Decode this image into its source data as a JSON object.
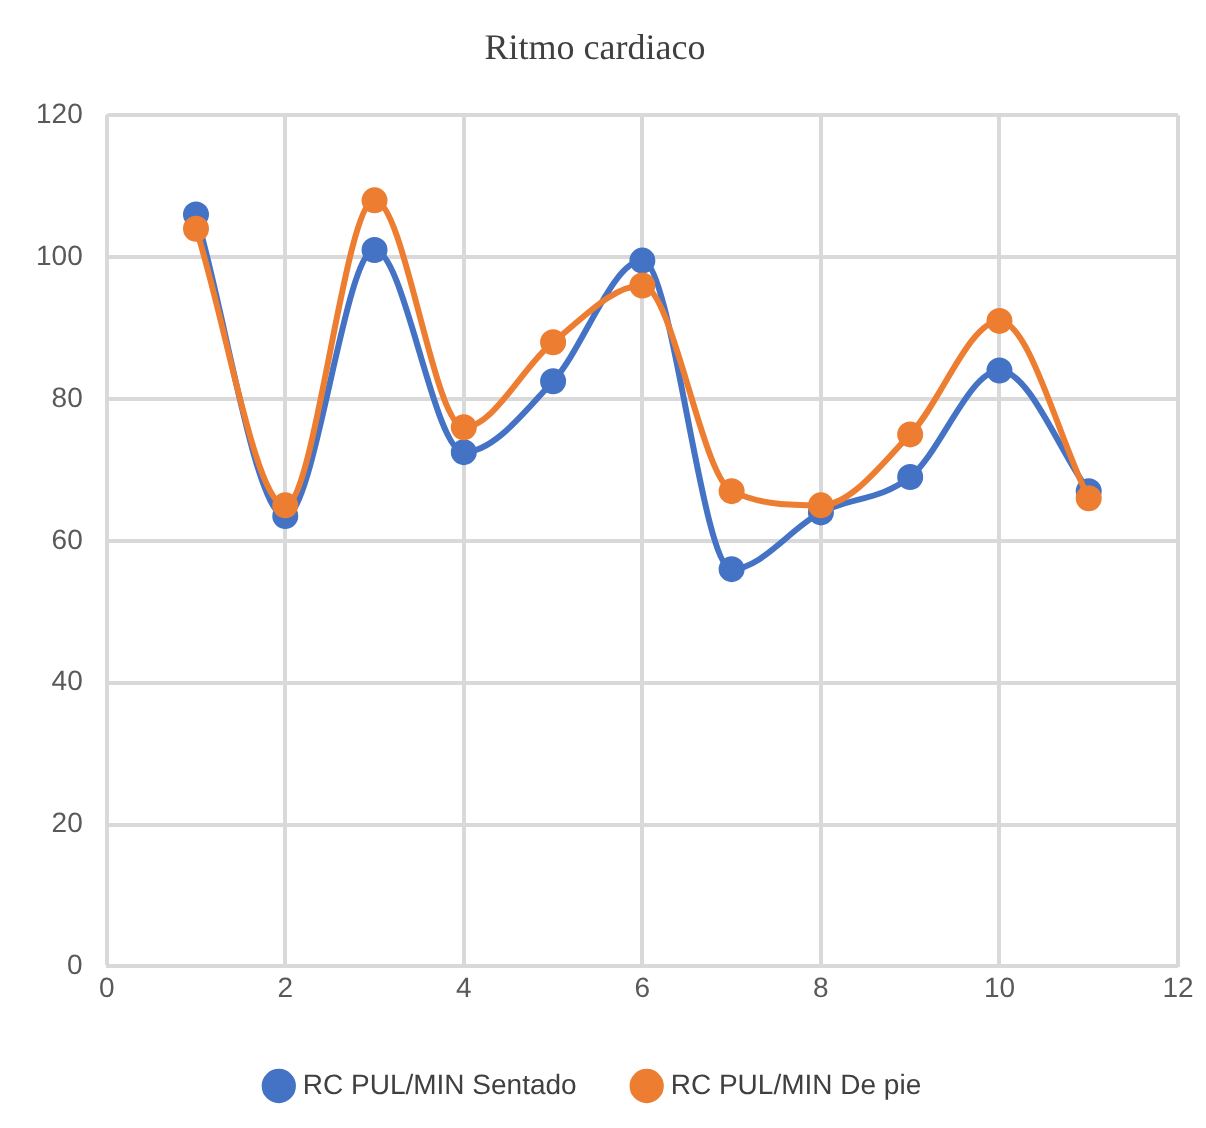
{
  "chart_data": {
    "type": "line",
    "title": "Ritmo cardiaco",
    "x": [
      1,
      2,
      3,
      4,
      5,
      6,
      7,
      8,
      9,
      10,
      11
    ],
    "series": [
      {
        "name": "RC PUL/MIN Sentado",
        "color": "#4472c4",
        "values": [
          106,
          63.5,
          101,
          72.5,
          82.5,
          99.5,
          56,
          64,
          69,
          84,
          67
        ]
      },
      {
        "name": "RC PUL/MIN De pie",
        "color": "#ed7d31",
        "values": [
          104,
          65,
          108,
          76,
          88,
          96,
          67,
          65,
          75,
          91,
          66
        ]
      }
    ],
    "xlim": [
      0,
      12
    ],
    "xticks": [
      0,
      2,
      4,
      6,
      8,
      10,
      12
    ],
    "ylim": [
      0,
      120
    ],
    "yticks": [
      0,
      20,
      40,
      60,
      80,
      100,
      120
    ],
    "grid": true,
    "legend": "bottom",
    "marker": "circle",
    "line_style": "solid"
  }
}
